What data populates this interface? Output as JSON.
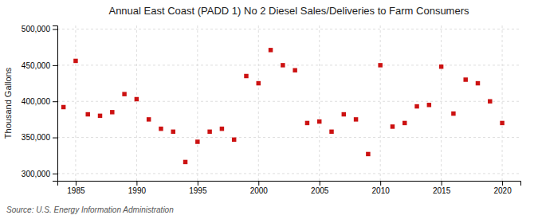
{
  "chart_data": {
    "type": "scatter",
    "title": "Annual East Coast (PADD 1) No 2 Diesel Sales/Deliveries to Farm Consumers",
    "ylabel": "Thousand Gallons",
    "annotations": [
      "Source: U.S. Energy Information Administration"
    ],
    "color": "#cc1111",
    "marker": "square",
    "grid": true,
    "xlim": [
      1983.5,
      2021.5
    ],
    "ylim": [
      290000,
      505000
    ],
    "xticks": [
      1985,
      1990,
      1995,
      2000,
      2005,
      2010,
      2015,
      2020
    ],
    "yticks": [
      {
        "value": 300000,
        "label": "300,000"
      },
      {
        "value": 350000,
        "label": "350,000"
      },
      {
        "value": 400000,
        "label": "400,000"
      },
      {
        "value": 450000,
        "label": "450,000"
      },
      {
        "value": 500000,
        "label": "500,000"
      }
    ],
    "x": [
      1984,
      1985,
      1986,
      1987,
      1988,
      1989,
      1990,
      1991,
      1992,
      1993,
      1994,
      1995,
      1996,
      1997,
      1998,
      1999,
      2000,
      2001,
      2002,
      2003,
      2004,
      2005,
      2006,
      2007,
      2008,
      2009,
      2010,
      2011,
      2012,
      2013,
      2014,
      2015,
      2016,
      2017,
      2018,
      2019,
      2020
    ],
    "values": [
      392000,
      456000,
      382000,
      380000,
      385000,
      410000,
      403000,
      375000,
      362000,
      358000,
      316000,
      344000,
      358000,
      362000,
      347000,
      435000,
      425000,
      471000,
      450000,
      443000,
      370000,
      372000,
      358000,
      382000,
      375000,
      327000,
      450000,
      365000,
      370000,
      393000,
      395000,
      448000,
      383000,
      430000,
      425000,
      400000,
      370000
    ]
  }
}
